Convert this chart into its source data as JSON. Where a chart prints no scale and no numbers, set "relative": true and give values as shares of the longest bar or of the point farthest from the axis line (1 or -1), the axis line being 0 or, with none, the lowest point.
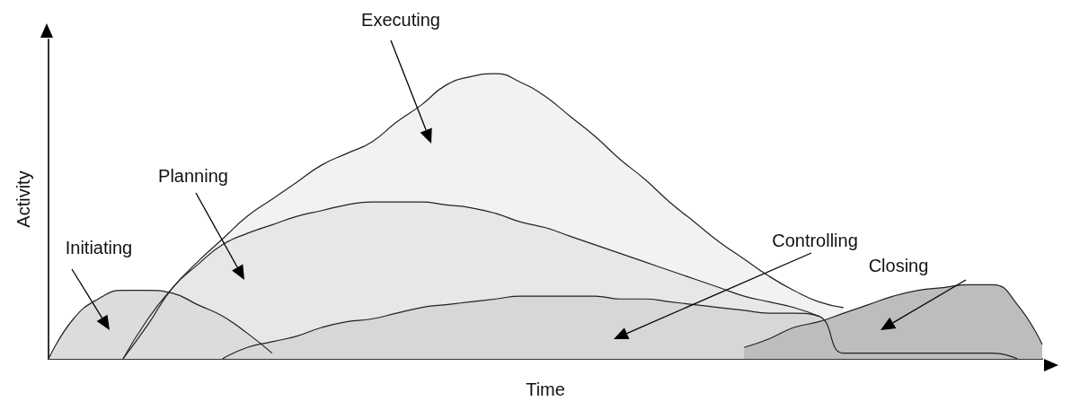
{
  "chart_data": {
    "type": "area",
    "relative": true,
    "xlabel": "Time",
    "ylabel": "Activity",
    "grid": false,
    "legend": false,
    "marker": "none",
    "categories": [
      null,
      null,
      null,
      null,
      null,
      null,
      null,
      null,
      null,
      null,
      null,
      null,
      null,
      null,
      null,
      null,
      null,
      null,
      null,
      null,
      null,
      null,
      null,
      null,
      null,
      null,
      null,
      null,
      null,
      null,
      null,
      null,
      null,
      null,
      null,
      null,
      null,
      null,
      null,
      null,
      null
    ],
    "series": [
      {
        "name": "Executing",
        "color": "#f3f2f2",
        "values": [
          null,
          null,
          null,
          0,
          0.14,
          0.25,
          0.34,
          0.42,
          0.5,
          0.56,
          0.62,
          0.68,
          0.72,
          0.76,
          0.83,
          0.89,
          0.96,
          0.99,
          1,
          0.97,
          0.92,
          0.85,
          0.78,
          0.7,
          0.63,
          0.55,
          0.48,
          0.41,
          0.35,
          0.29,
          0.24,
          0.2,
          0.18,
          null,
          null,
          null,
          null,
          null,
          null,
          null,
          null
        ]
      },
      {
        "name": "Planning",
        "color": "#e8e6e6",
        "values": [
          null,
          null,
          null,
          0,
          0.12,
          0.25,
          0.33,
          0.4,
          0.44,
          0.47,
          0.5,
          0.52,
          0.54,
          0.55,
          0.55,
          0.55,
          0.54,
          0.53,
          0.51,
          0.48,
          0.46,
          0.43,
          0.4,
          0.37,
          0.34,
          0.31,
          0.28,
          0.25,
          0.22,
          0.2,
          0.18,
          0.15,
          null,
          null,
          null,
          null,
          null,
          null,
          null,
          null,
          null
        ]
      },
      {
        "name": "Initiating",
        "color": "#dcdcdc",
        "values": [
          0,
          0.14,
          0.21,
          0.24,
          0.24,
          0.23,
          0.19,
          0.15,
          0.09,
          0.02,
          null,
          null,
          null,
          null,
          null,
          null,
          null,
          null,
          null,
          null,
          null,
          null,
          null,
          null,
          null,
          null,
          null,
          null,
          null,
          null,
          null,
          null,
          null,
          null,
          null,
          null,
          null,
          null,
          null,
          null,
          null
        ]
      },
      {
        "name": "Controlling",
        "color": "#d7d7d7",
        "values": [
          null,
          null,
          null,
          null,
          null,
          null,
          null,
          0,
          0.04,
          0.06,
          0.08,
          0.11,
          0.13,
          0.14,
          0.16,
          0.18,
          0.19,
          0.2,
          0.21,
          0.22,
          0.22,
          0.22,
          0.22,
          0.21,
          0.21,
          0.2,
          0.19,
          0.18,
          0.17,
          0.16,
          0.16,
          0.15,
          0.02,
          0.02,
          0.02,
          0.02,
          0.02,
          0.02,
          0.02,
          0,
          null
        ]
      },
      {
        "name": "Closing",
        "color": "#bdbdbd",
        "values": [
          null,
          null,
          null,
          null,
          null,
          null,
          null,
          null,
          null,
          null,
          null,
          null,
          null,
          null,
          null,
          null,
          null,
          null,
          null,
          null,
          null,
          null,
          null,
          null,
          null,
          null,
          null,
          null,
          0.04,
          0.07,
          0.11,
          0.13,
          0.16,
          0.19,
          0.22,
          0.24,
          0.25,
          0.26,
          0.26,
          0.19,
          0.05
        ]
      }
    ]
  }
}
